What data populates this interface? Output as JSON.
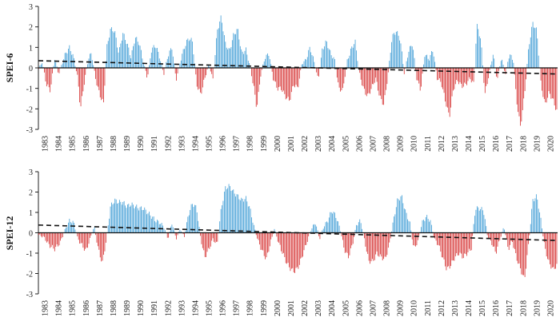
{
  "chart_data": [
    {
      "type": "bar",
      "title": "",
      "ylabel": "SPEI-6",
      "xlabel": "",
      "ylim": [
        -3,
        3
      ],
      "yticks": [
        -3,
        -2,
        -1,
        0,
        1,
        2,
        3
      ],
      "xticks": [
        "1983",
        "1984",
        "1985",
        "1986",
        "1987",
        "1988",
        "1989",
        "1990",
        "1991",
        "1992",
        "1993",
        "1994",
        "1995",
        "1996",
        "1997",
        "1998",
        "1999",
        "2000",
        "2001",
        "2002",
        "2003",
        "2004",
        "2005",
        "2006",
        "2007",
        "2008",
        "2009",
        "2010",
        "2011",
        "2012",
        "2013",
        "2014",
        "2015",
        "2016",
        "2017",
        "2018",
        "2019",
        "2020"
      ],
      "time_unit": "monthly",
      "start_year": 1983,
      "end_year": 2020,
      "trend_line": {
        "start": 0.35,
        "end": -0.3
      },
      "positive_color": "#3a9ad4",
      "negative_color": "#d42a2a",
      "anchors": [
        [
          1983.0,
          -0.1
        ],
        [
          1983.3,
          0.3
        ],
        [
          1983.6,
          -0.8
        ],
        [
          1983.9,
          -1.1
        ],
        [
          1984.2,
          0.5
        ],
        [
          1984.5,
          -0.3
        ],
        [
          1984.8,
          0.3
        ],
        [
          1985.0,
          0.7
        ],
        [
          1985.3,
          1.0
        ],
        [
          1985.6,
          0.5
        ],
        [
          1985.9,
          -0.5
        ],
        [
          1986.1,
          -2.0
        ],
        [
          1986.4,
          -0.6
        ],
        [
          1986.7,
          0.5
        ],
        [
          1986.9,
          0.7
        ],
        [
          1987.2,
          -0.5
        ],
        [
          1987.5,
          -1.3
        ],
        [
          1987.8,
          -1.75
        ],
        [
          1988.0,
          0.9
        ],
        [
          1988.3,
          1.9
        ],
        [
          1988.6,
          1.8
        ],
        [
          1988.9,
          0.7
        ],
        [
          1989.2,
          1.7
        ],
        [
          1989.5,
          1.2
        ],
        [
          1989.8,
          0.5
        ],
        [
          1990.1,
          1.5
        ],
        [
          1990.4,
          1.2
        ],
        [
          1990.7,
          0.3
        ],
        [
          1991.0,
          -0.5
        ],
        [
          1991.3,
          0.9
        ],
        [
          1991.6,
          1.1
        ],
        [
          1991.9,
          0.5
        ],
        [
          1992.2,
          -0.3
        ],
        [
          1992.5,
          0.6
        ],
        [
          1992.8,
          1.0
        ],
        [
          1993.1,
          -0.6
        ],
        [
          1993.4,
          0.3
        ],
        [
          1993.7,
          1.0
        ],
        [
          1994.0,
          1.45
        ],
        [
          1994.3,
          1.3
        ],
        [
          1994.6,
          -0.8
        ],
        [
          1994.9,
          -1.3
        ],
        [
          1995.2,
          -0.5
        ],
        [
          1995.5,
          0.2
        ],
        [
          1995.8,
          -0.6
        ],
        [
          1996.1,
          1.8
        ],
        [
          1996.4,
          2.5
        ],
        [
          1996.7,
          1.2
        ],
        [
          1997.0,
          0.8
        ],
        [
          1997.3,
          1.6
        ],
        [
          1997.6,
          1.9
        ],
        [
          1997.9,
          0.7
        ],
        [
          1998.2,
          0.9
        ],
        [
          1998.5,
          0.1
        ],
        [
          1998.8,
          -1.0
        ],
        [
          1999.0,
          -2.0
        ],
        [
          1999.3,
          -0.3
        ],
        [
          1999.6,
          0.5
        ],
        [
          1999.9,
          0.7
        ],
        [
          2000.2,
          -0.5
        ],
        [
          2000.5,
          -1.0
        ],
        [
          2000.8,
          -1.0
        ],
        [
          2001.1,
          -1.4
        ],
        [
          2001.4,
          -1.6
        ],
        [
          2001.7,
          -0.8
        ],
        [
          2002.0,
          -1.0
        ],
        [
          2002.3,
          0.2
        ],
        [
          2002.6,
          0.4
        ],
        [
          2002.9,
          1.0
        ],
        [
          2003.2,
          0.3
        ],
        [
          2003.5,
          -0.6
        ],
        [
          2003.8,
          0.9
        ],
        [
          2004.1,
          1.3
        ],
        [
          2004.4,
          0.7
        ],
        [
          2004.7,
          0.4
        ],
        [
          2005.0,
          -1.0
        ],
        [
          2005.3,
          -1.1
        ],
        [
          2005.6,
          0.3
        ],
        [
          2005.9,
          0.9
        ],
        [
          2006.2,
          1.3
        ],
        [
          2006.5,
          -0.2
        ],
        [
          2006.8,
          -1.0
        ],
        [
          2007.1,
          -1.4
        ],
        [
          2007.4,
          -1.0
        ],
        [
          2007.7,
          -0.5
        ],
        [
          2008.0,
          -1.4
        ],
        [
          2008.3,
          -1.8
        ],
        [
          2008.6,
          -0.4
        ],
        [
          2008.9,
          1.5
        ],
        [
          2009.2,
          1.8
        ],
        [
          2009.5,
          1.4
        ],
        [
          2009.8,
          -0.3
        ],
        [
          2010.1,
          0.8
        ],
        [
          2010.4,
          1.2
        ],
        [
          2010.7,
          -0.5
        ],
        [
          2011.0,
          -1.1
        ],
        [
          2011.3,
          0.7
        ],
        [
          2011.6,
          0.4
        ],
        [
          2011.9,
          0.9
        ],
        [
          2012.2,
          -0.5
        ],
        [
          2012.5,
          -0.7
        ],
        [
          2012.8,
          -1.6
        ],
        [
          2013.1,
          -2.4
        ],
        [
          2013.4,
          -1.0
        ],
        [
          2013.7,
          -0.6
        ],
        [
          2014.0,
          -0.9
        ],
        [
          2014.3,
          -0.8
        ],
        [
          2014.6,
          -0.5
        ],
        [
          2014.9,
          -0.8
        ],
        [
          2015.1,
          2.1
        ],
        [
          2015.4,
          1.4
        ],
        [
          2015.7,
          -1.3
        ],
        [
          2016.0,
          -0.3
        ],
        [
          2016.3,
          0.7
        ],
        [
          2016.6,
          -0.6
        ],
        [
          2016.9,
          0.5
        ],
        [
          2017.2,
          -0.3
        ],
        [
          2017.5,
          0.7
        ],
        [
          2017.8,
          0.3
        ],
        [
          2018.0,
          -1.5
        ],
        [
          2018.3,
          -2.9
        ],
        [
          2018.6,
          -1.3
        ],
        [
          2018.9,
          1.0
        ],
        [
          2019.2,
          2.2
        ],
        [
          2019.5,
          1.8
        ],
        [
          2019.8,
          -0.8
        ],
        [
          2020.1,
          -1.8
        ],
        [
          2020.4,
          -1.2
        ],
        [
          2020.7,
          -1.6
        ],
        [
          2020.95,
          -2.1
        ]
      ]
    },
    {
      "type": "bar",
      "title": "",
      "ylabel": "SPEI-12",
      "xlabel": "",
      "ylim": [
        -3,
        3
      ],
      "yticks": [
        -3,
        -2,
        -1,
        0,
        1,
        2,
        3
      ],
      "xticks": [
        "1983",
        "1984",
        "1985",
        "1986",
        "1987",
        "1988",
        "1989",
        "1990",
        "1991",
        "1992",
        "1993",
        "1994",
        "1995",
        "1996",
        "1997",
        "1998",
        "1999",
        "2000",
        "2001",
        "2002",
        "2003",
        "2004",
        "2005",
        "2006",
        "2007",
        "2008",
        "2009",
        "2010",
        "2011",
        "2012",
        "2013",
        "2014",
        "2015",
        "2016",
        "2017",
        "2018",
        "2019",
        "2020"
      ],
      "time_unit": "monthly",
      "start_year": 1983,
      "end_year": 2020,
      "trend_line": {
        "start": 0.38,
        "end": -0.38
      },
      "positive_color": "#3a9ad4",
      "negative_color": "#d42a2a",
      "anchors": [
        [
          1983.0,
          -0.1
        ],
        [
          1983.4,
          -0.2
        ],
        [
          1983.8,
          -0.6
        ],
        [
          1984.2,
          -0.8
        ],
        [
          1984.6,
          -0.5
        ],
        [
          1985.0,
          0.2
        ],
        [
          1985.3,
          0.6
        ],
        [
          1985.6,
          0.5
        ],
        [
          1985.9,
          -0.3
        ],
        [
          1986.2,
          -0.6
        ],
        [
          1986.5,
          -0.9
        ],
        [
          1986.8,
          -0.3
        ],
        [
          1987.1,
          0.3
        ],
        [
          1987.4,
          -0.8
        ],
        [
          1987.7,
          -1.5
        ],
        [
          1988.0,
          -0.3
        ],
        [
          1988.3,
          1.3
        ],
        [
          1988.6,
          1.6
        ],
        [
          1988.9,
          1.5
        ],
        [
          1989.2,
          1.5
        ],
        [
          1989.5,
          1.3
        ],
        [
          1989.8,
          1.4
        ],
        [
          1990.1,
          1.3
        ],
        [
          1990.4,
          1.2
        ],
        [
          1990.7,
          1.2
        ],
        [
          1991.0,
          1.0
        ],
        [
          1991.3,
          0.8
        ],
        [
          1991.6,
          0.6
        ],
        [
          1991.9,
          0.5
        ],
        [
          1992.2,
          0.3
        ],
        [
          1992.5,
          -0.3
        ],
        [
          1992.8,
          0.5
        ],
        [
          1993.1,
          -0.3
        ],
        [
          1993.4,
          0.2
        ],
        [
          1993.7,
          -0.2
        ],
        [
          1994.0,
          0.9
        ],
        [
          1994.3,
          1.45
        ],
        [
          1994.6,
          1.2
        ],
        [
          1994.9,
          -0.3
        ],
        [
          1995.2,
          -1.2
        ],
        [
          1995.5,
          -0.8
        ],
        [
          1995.8,
          -0.3
        ],
        [
          1996.1,
          -0.6
        ],
        [
          1996.4,
          1.2
        ],
        [
          1996.7,
          2.2
        ],
        [
          1997.0,
          2.3
        ],
        [
          1997.3,
          2.0
        ],
        [
          1997.6,
          1.8
        ],
        [
          1997.9,
          1.6
        ],
        [
          1998.2,
          1.7
        ],
        [
          1998.5,
          1.2
        ],
        [
          1998.8,
          0.3
        ],
        [
          1999.1,
          -0.4
        ],
        [
          1999.4,
          -0.9
        ],
        [
          1999.7,
          -1.3
        ],
        [
          2000.0,
          -0.5
        ],
        [
          2000.3,
          0.2
        ],
        [
          2000.6,
          -0.5
        ],
        [
          2000.9,
          -1.0
        ],
        [
          2001.2,
          -1.5
        ],
        [
          2001.5,
          -1.8
        ],
        [
          2001.8,
          -1.9
        ],
        [
          2002.1,
          -1.6
        ],
        [
          2002.4,
          -1.0
        ],
        [
          2002.7,
          -0.4
        ],
        [
          2003.0,
          0.2
        ],
        [
          2003.3,
          0.5
        ],
        [
          2003.6,
          -0.3
        ],
        [
          2003.9,
          0.3
        ],
        [
          2004.2,
          0.6
        ],
        [
          2004.5,
          1.1
        ],
        [
          2004.8,
          0.8
        ],
        [
          2005.1,
          0.2
        ],
        [
          2005.4,
          -0.8
        ],
        [
          2005.7,
          -1.2
        ],
        [
          2006.0,
          -0.6
        ],
        [
          2006.3,
          0.4
        ],
        [
          2006.6,
          0.6
        ],
        [
          2006.9,
          -0.4
        ],
        [
          2007.2,
          -1.4
        ],
        [
          2007.5,
          -1.4
        ],
        [
          2007.8,
          -1.0
        ],
        [
          2008.1,
          -1.2
        ],
        [
          2008.4,
          -1.3
        ],
        [
          2008.7,
          -0.6
        ],
        [
          2009.0,
          0.6
        ],
        [
          2009.3,
          1.6
        ],
        [
          2009.6,
          1.8
        ],
        [
          2009.9,
          1.0
        ],
        [
          2010.2,
          0.5
        ],
        [
          2010.5,
          -0.8
        ],
        [
          2010.8,
          -0.4
        ],
        [
          2011.1,
          0.5
        ],
        [
          2011.4,
          0.8
        ],
        [
          2011.7,
          0.6
        ],
        [
          2012.0,
          -0.3
        ],
        [
          2012.3,
          -0.6
        ],
        [
          2012.6,
          -1.2
        ],
        [
          2012.9,
          -1.8
        ],
        [
          2013.2,
          -1.6
        ],
        [
          2013.5,
          -1.2
        ],
        [
          2013.8,
          -1.0
        ],
        [
          2014.1,
          -1.2
        ],
        [
          2014.4,
          -1.0
        ],
        [
          2014.7,
          -0.8
        ],
        [
          2015.0,
          1.2
        ],
        [
          2015.3,
          1.2
        ],
        [
          2015.6,
          1.1
        ],
        [
          2015.9,
          -0.2
        ],
        [
          2016.2,
          -0.5
        ],
        [
          2016.5,
          -1.0
        ],
        [
          2016.8,
          -0.3
        ],
        [
          2017.1,
          0.3
        ],
        [
          2017.4,
          -0.8
        ],
        [
          2017.7,
          -0.4
        ],
        [
          2018.0,
          -1.2
        ],
        [
          2018.3,
          -1.8
        ],
        [
          2018.6,
          -2.3
        ],
        [
          2018.9,
          -0.5
        ],
        [
          2019.2,
          1.6
        ],
        [
          2019.5,
          1.8
        ],
        [
          2019.8,
          0.6
        ],
        [
          2020.1,
          -0.8
        ],
        [
          2020.4,
          -1.5
        ],
        [
          2020.7,
          -1.8
        ],
        [
          2020.95,
          -1.6
        ]
      ]
    }
  ]
}
